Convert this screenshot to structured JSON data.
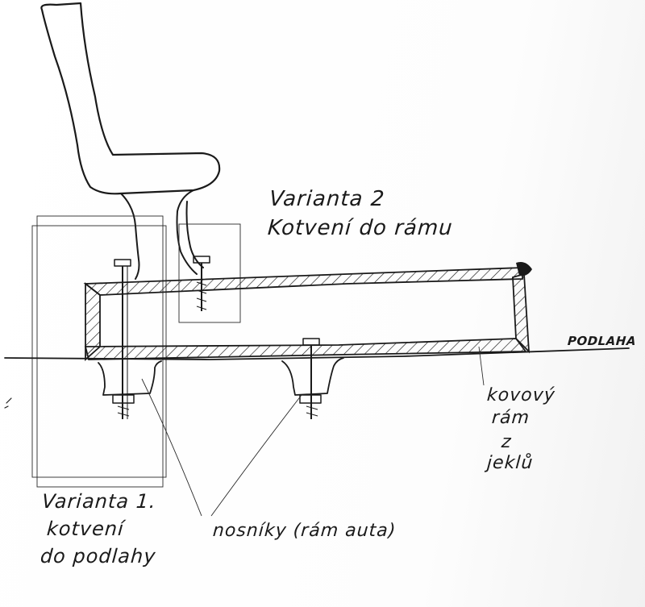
{
  "labels": {
    "variant2_title": "Varianta 2",
    "variant2_desc": "Kotvení do rámu",
    "floor": "PODLAHA",
    "frame_line1": "kovový",
    "frame_line2": "rám",
    "frame_line3": "z",
    "frame_line4": "jeklů",
    "variant1_title": "Varianta 1.",
    "variant1_line2": "kotvení",
    "variant1_line3": "do podlahy",
    "beams": "nosníky (rám auta)"
  },
  "colors": {
    "ink": "#1a1a1a",
    "paper": "#ffffff"
  }
}
